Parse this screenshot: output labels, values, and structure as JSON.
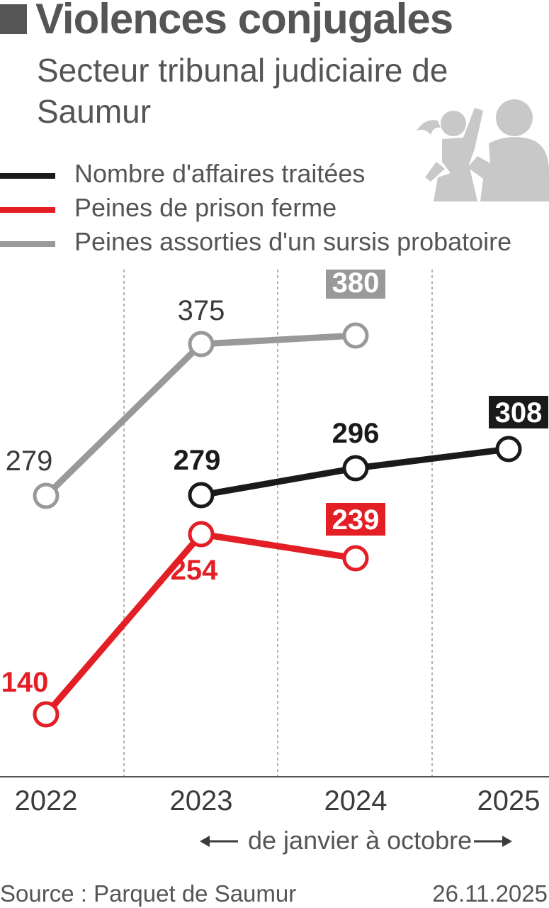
{
  "header": {
    "title": "Violences conjugales",
    "subtitle": "Secteur tribunal judiciaire de Saumur"
  },
  "legend": [
    {
      "label": "Nombre d'affaires traitées",
      "color": "#1a1a1a"
    },
    {
      "label": "Peines de prison ferme",
      "color": "#e31e24"
    },
    {
      "label": "Peines assorties d'un sursis probatoire",
      "color": "#999999"
    }
  ],
  "illustration": {
    "icon": "domestic-violence-icon",
    "color": "#c8c8c8"
  },
  "chart_data": {
    "type": "line",
    "categories": [
      "2022",
      "2023",
      "2024",
      "2025"
    ],
    "series": [
      {
        "name": "Nombre d'affaires traitées",
        "color": "#1a1a1a",
        "values": [
          null,
          279,
          296,
          308
        ],
        "highlight_last": true
      },
      {
        "name": "Peines de prison ferme",
        "color": "#e31e24",
        "values": [
          140,
          254,
          239,
          null
        ],
        "highlight_last": true
      },
      {
        "name": "Peines assorties d'un sursis probatoire",
        "color": "#999999",
        "values": [
          279,
          375,
          380,
          null
        ],
        "highlight_last": true
      }
    ],
    "grid": "vertical dashed"
  },
  "period_note": "de janvier à octobre",
  "footer": {
    "source": "Source : Parquet de Saumur",
    "date": "26.11.2025"
  }
}
